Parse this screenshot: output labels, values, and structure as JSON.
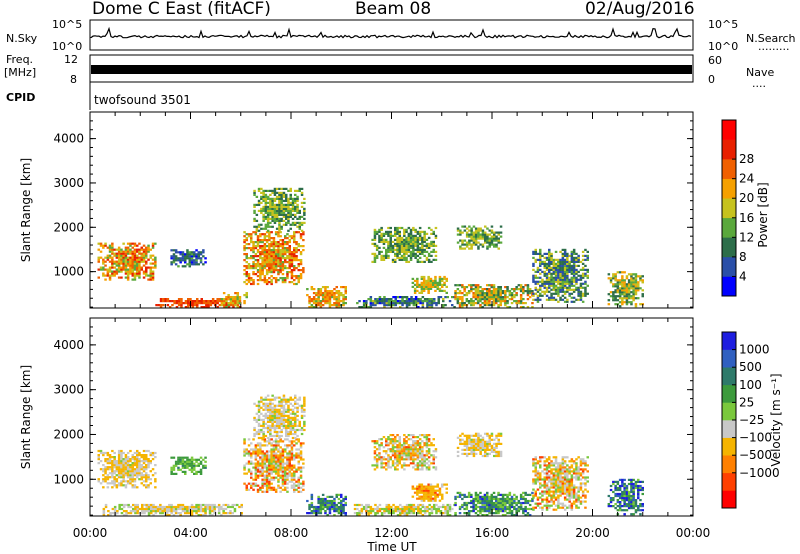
{
  "header": {
    "radar": "Dome C East (fitACF)",
    "beam": "Beam 08",
    "date": "02/Aug/2016"
  },
  "strips": {
    "nsky_label": "N.Sky",
    "nsky_ticks": [
      "10^5",
      "10^0"
    ],
    "nsearch_label": "N.Search",
    "nsearch_ticks": [
      "10^5",
      "10^0"
    ],
    "freq_label_1": "Freq.",
    "freq_label_2": "[MHz]",
    "freq_ticks": [
      "12",
      "8"
    ],
    "nave_label": "Nave",
    "nave_ticks": [
      "60",
      "0"
    ],
    "cpid_label": "CPID",
    "cpid_value": "twofsound 3501"
  },
  "colors": {
    "power_scale": [
      "#0000ff",
      "#2a4fa8",
      "#2d6e4a",
      "#5aa83c",
      "#c6c21e",
      "#f5a000",
      "#f06000",
      "#e82000",
      "#ff0000"
    ],
    "velocity_scale": [
      "#ff0000",
      "#ff4000",
      "#ff8000",
      "#f5b400",
      "#c8c8c8",
      "#7ac83c",
      "#3c9a3c",
      "#2e7a6a",
      "#3060c0",
      "#1e1ee0"
    ]
  },
  "chart_data": [
    {
      "type": "heatmap",
      "name": "power",
      "xlabel": "Time UT",
      "ylabel": "Slant Range [km]",
      "xlim": [
        0,
        24
      ],
      "ylim": [
        180,
        4600
      ],
      "x_ticks": [
        "00:00",
        "04:00",
        "08:00",
        "12:00",
        "16:00",
        "20:00",
        "00:00"
      ],
      "y_ticks": [
        "1000",
        "2000",
        "3000",
        "4000"
      ],
      "colorbar_label": "Power [dB]",
      "colorbar_ticks": [
        "4",
        "8",
        "12",
        "16",
        "20",
        "24",
        "28"
      ],
      "clim": [
        0,
        32
      ],
      "regions": [
        {
          "t0": 0.3,
          "t1": 2.6,
          "r0": 800,
          "r1": 1650,
          "v": 22,
          "spread": 9
        },
        {
          "t0": 3.2,
          "t1": 4.6,
          "r0": 1100,
          "r1": 1500,
          "v": 8,
          "spread": 5
        },
        {
          "t0": 2.6,
          "t1": 6.0,
          "r0": 180,
          "r1": 400,
          "v": 28,
          "spread": 4
        },
        {
          "t0": 5.2,
          "t1": 6.2,
          "r0": 180,
          "r1": 500,
          "v": 20,
          "spread": 6
        },
        {
          "t0": 6.1,
          "t1": 8.5,
          "r0": 700,
          "r1": 1900,
          "v": 22,
          "spread": 8
        },
        {
          "t0": 6.5,
          "t1": 8.5,
          "r0": 1900,
          "r1": 2850,
          "v": 14,
          "spread": 6
        },
        {
          "t0": 8.6,
          "t1": 10.2,
          "r0": 180,
          "r1": 650,
          "v": 21,
          "spread": 7
        },
        {
          "t0": 11.2,
          "t1": 13.8,
          "r0": 1200,
          "r1": 2000,
          "v": 14,
          "spread": 6
        },
        {
          "t0": 12.8,
          "t1": 14.2,
          "r0": 500,
          "r1": 900,
          "v": 18,
          "spread": 6
        },
        {
          "t0": 10.5,
          "t1": 14.5,
          "r0": 180,
          "r1": 420,
          "v": 10,
          "spread": 7
        },
        {
          "t0": 14.5,
          "t1": 17.6,
          "r0": 180,
          "r1": 700,
          "v": 17,
          "spread": 9
        },
        {
          "t0": 17.6,
          "t1": 19.8,
          "r0": 300,
          "r1": 1500,
          "v": 12,
          "spread": 8
        },
        {
          "t0": 20.6,
          "t1": 22.0,
          "r0": 200,
          "r1": 1000,
          "v": 16,
          "spread": 8
        },
        {
          "t0": 14.6,
          "t1": 16.4,
          "r0": 1500,
          "r1": 2000,
          "v": 14,
          "spread": 6
        }
      ]
    },
    {
      "type": "heatmap",
      "name": "velocity",
      "xlabel": "Time UT",
      "ylabel": "Slant Range [km]",
      "xlim": [
        0,
        24
      ],
      "ylim": [
        180,
        4600
      ],
      "x_ticks": [
        "00:00",
        "04:00",
        "08:00",
        "12:00",
        "16:00",
        "20:00",
        "00:00"
      ],
      "y_ticks": [
        "1000",
        "2000",
        "3000",
        "4000"
      ],
      "colorbar_label": "Velocity [m s⁻¹]",
      "colorbar_ticks": [
        "1000",
        "500",
        "100",
        "25",
        "−25",
        "−100",
        "−500",
        "−1000"
      ],
      "regions": [
        {
          "t0": 0.3,
          "t1": 2.6,
          "r0": 800,
          "r1": 1650,
          "v": -100,
          "spread": 1
        },
        {
          "t0": 3.2,
          "t1": 4.6,
          "r0": 1100,
          "r1": 1500,
          "v": 30,
          "spread": 1
        },
        {
          "t0": 0.5,
          "t1": 6.0,
          "r0": 180,
          "r1": 450,
          "v": -60,
          "spread": 1
        },
        {
          "t0": 6.1,
          "t1": 8.5,
          "r0": 700,
          "r1": 1900,
          "v": -200,
          "spread": 2
        },
        {
          "t0": 6.5,
          "t1": 8.5,
          "r0": 1900,
          "r1": 2850,
          "v": -80,
          "spread": 1
        },
        {
          "t0": 8.6,
          "t1": 10.2,
          "r0": 180,
          "r1": 650,
          "v": 150,
          "spread": 2
        },
        {
          "t0": 11.2,
          "t1": 13.8,
          "r0": 1200,
          "r1": 2000,
          "v": -100,
          "spread": 2
        },
        {
          "t0": 12.8,
          "t1": 14.2,
          "r0": 500,
          "r1": 900,
          "v": -300,
          "spread": 1
        },
        {
          "t0": 10.5,
          "t1": 14.5,
          "r0": 180,
          "r1": 420,
          "v": -40,
          "spread": 2
        },
        {
          "t0": 14.5,
          "t1": 17.6,
          "r0": 180,
          "r1": 700,
          "v": 80,
          "spread": 2
        },
        {
          "t0": 17.6,
          "t1": 19.8,
          "r0": 300,
          "r1": 1500,
          "v": -120,
          "spread": 2
        },
        {
          "t0": 20.6,
          "t1": 22.0,
          "r0": 200,
          "r1": 1000,
          "v": 200,
          "spread": 2
        },
        {
          "t0": 14.6,
          "t1": 16.4,
          "r0": 1500,
          "r1": 2000,
          "v": -100,
          "spread": 1
        }
      ]
    }
  ]
}
